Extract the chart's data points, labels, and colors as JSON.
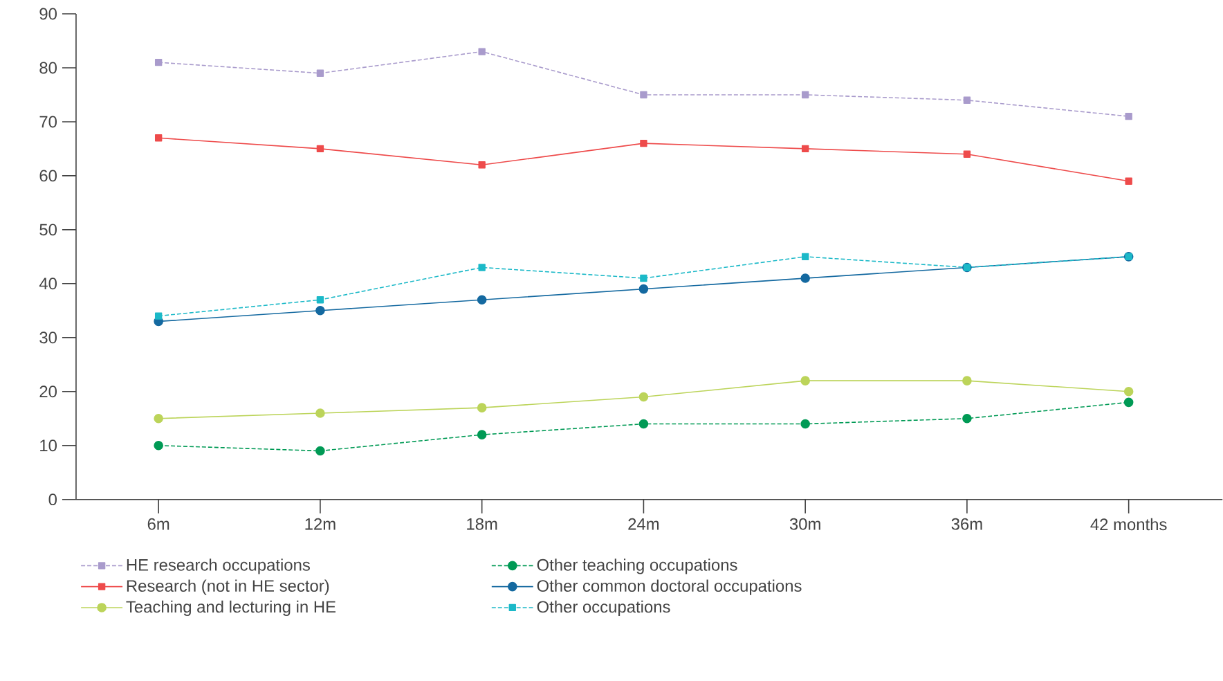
{
  "chart_data": {
    "type": "line",
    "categories": [
      "6m",
      "12m",
      "18m",
      "24m",
      "30m",
      "36m",
      "42 months"
    ],
    "ylim": [
      0,
      90
    ],
    "yticks": [
      0,
      10,
      20,
      30,
      40,
      50,
      60,
      70,
      80,
      90
    ],
    "grid": false,
    "legend": "bottom",
    "series": [
      {
        "name": "HE research occupations",
        "color": "#a99bcc",
        "marker": "square",
        "line_style": "dashed",
        "values": [
          81,
          79,
          83,
          75,
          75,
          74,
          71
        ]
      },
      {
        "name": "Other teaching occupations",
        "color": "#009a55",
        "marker": "circle",
        "line_style": "dashed",
        "values": [
          10,
          9,
          12,
          14,
          14,
          15,
          18
        ]
      },
      {
        "name": "Research (not in HE sector)",
        "color": "#ee4b4b",
        "marker": "square",
        "line_style": "solid",
        "values": [
          67,
          65,
          62,
          66,
          65,
          64,
          59
        ]
      },
      {
        "name": "Other common doctoral occupations",
        "color": "#1469a0",
        "marker": "circle",
        "line_style": "solid",
        "values": [
          33,
          35,
          37,
          39,
          41,
          43,
          45
        ]
      },
      {
        "name": "Teaching and lecturing in HE",
        "color": "#bcd45a",
        "marker": "circle",
        "line_style": "solid",
        "values": [
          15,
          16,
          17,
          19,
          22,
          22,
          20
        ]
      },
      {
        "name": "Other occupations",
        "color": "#1cb9c8",
        "marker": "square",
        "line_style": "dashed",
        "values": [
          34,
          37,
          43,
          41,
          45,
          43,
          45
        ]
      }
    ]
  }
}
